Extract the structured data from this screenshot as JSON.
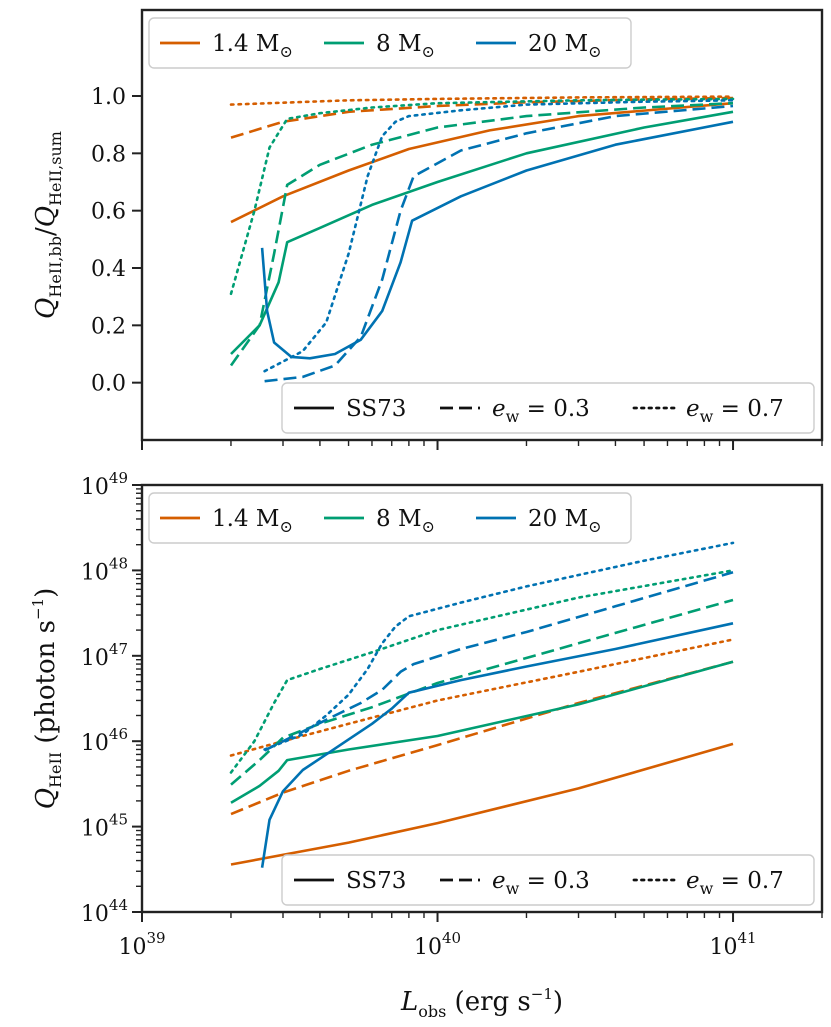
{
  "colors": {
    "m14": "#d55e00",
    "m8": "#009e73",
    "m20": "#0072b2",
    "axis": "#222222"
  },
  "mass_legend": [
    {
      "label": "1.4",
      "unit": "M",
      "sub": "⊙",
      "color": "#d55e00"
    },
    {
      "label": "8",
      "unit": "M",
      "sub": "⊙",
      "color": "#009e73"
    },
    {
      "label": "20",
      "unit": "M",
      "sub": "⊙",
      "color": "#0072b2"
    }
  ],
  "style_legend": [
    {
      "label": "SS73",
      "style": "solid"
    },
    {
      "label": "e",
      "sub": "w",
      "rest": " = 0.3",
      "style": "dashed"
    },
    {
      "label": "e",
      "sub": "w",
      "rest": " = 0.7",
      "style": "dotted"
    }
  ],
  "x_axis": {
    "label": "L",
    "label_sub": "obs",
    "label_unit": " (erg s",
    "label_sup": "−1",
    "label_close": ")",
    "scale": "log",
    "range": [
      1e+39,
      2e+40
    ],
    "ticks": [
      {
        "base": "10",
        "exp": "39",
        "value": 1e+39
      },
      {
        "base": "10",
        "exp": "40",
        "value": 1e+40
      },
      {
        "base": "10",
        "exp": "41",
        "value": 1e+41
      }
    ]
  },
  "chart_data": [
    {
      "type": "line",
      "panel": "top",
      "ylabel": {
        "q": "Q",
        "num_sub": "HeII,bb",
        "slash": "/",
        "q2": "Q",
        "den_sub": "HeII,sum"
      },
      "yscale": "linear",
      "ylim": [
        -0.2,
        1.3
      ],
      "yticks": [
        "0.0",
        "0.2",
        "0.4",
        "0.6",
        "0.8",
        "1.0"
      ],
      "xlim": [
        1e+39,
        2e+41
      ],
      "series": [
        {
          "mass": "1.4",
          "style": "solid",
          "x": [
            2e+39,
            3e+39,
            5e+39,
            8e+39,
            1.5e+40,
            3e+40,
            1e+41
          ],
          "y": [
            0.56,
            0.65,
            0.74,
            0.815,
            0.88,
            0.93,
            0.975
          ]
        },
        {
          "mass": "1.4",
          "style": "dashed",
          "x": [
            2e+39,
            3e+39,
            5e+39,
            1e+40,
            2e+40,
            5e+40,
            1e+41
          ],
          "y": [
            0.855,
            0.91,
            0.945,
            0.965,
            0.978,
            0.988,
            0.993
          ]
        },
        {
          "mass": "1.4",
          "style": "dotted",
          "x": [
            2e+39,
            5e+39,
            1e+40,
            3e+40,
            1e+41
          ],
          "y": [
            0.97,
            0.985,
            0.99,
            0.995,
            0.998
          ]
        },
        {
          "mass": "8",
          "style": "solid",
          "x": [
            2e+39,
            2.5e+39,
            2.9e+39,
            3.1e+39,
            4e+39,
            6e+39,
            1e+40,
            2e+40,
            5e+40,
            1e+41
          ],
          "y": [
            0.1,
            0.2,
            0.35,
            0.49,
            0.54,
            0.62,
            0.7,
            0.8,
            0.89,
            0.945
          ]
        },
        {
          "mass": "8",
          "style": "dashed",
          "x": [
            2e+39,
            2.5e+39,
            2.8e+39,
            3.1e+39,
            4e+39,
            6e+39,
            1e+40,
            2e+40,
            5e+40,
            1e+41
          ],
          "y": [
            0.06,
            0.2,
            0.45,
            0.69,
            0.76,
            0.83,
            0.89,
            0.93,
            0.96,
            0.975
          ]
        },
        {
          "mass": "8",
          "style": "dotted",
          "x": [
            2e+39,
            2.4e+39,
            2.7e+39,
            3.1e+39,
            4e+39,
            6e+39,
            1e+40,
            3e+40,
            1e+41
          ],
          "y": [
            0.31,
            0.6,
            0.82,
            0.92,
            0.94,
            0.96,
            0.975,
            0.985,
            0.99
          ]
        },
        {
          "mass": "20",
          "style": "solid",
          "x": [
            2.55e+39,
            2.65e+39,
            2.8e+39,
            3.2e+39,
            3.7e+39,
            4.5e+39,
            5.5e+39,
            6.5e+39,
            7.5e+39,
            8.2e+39,
            1.2e+40,
            2e+40,
            4e+40,
            1e+41
          ],
          "y": [
            0.47,
            0.25,
            0.14,
            0.09,
            0.085,
            0.1,
            0.15,
            0.25,
            0.42,
            0.565,
            0.65,
            0.74,
            0.83,
            0.91
          ]
        },
        {
          "mass": "20",
          "style": "dashed",
          "x": [
            2.6e+39,
            3.5e+39,
            4.5e+39,
            5.5e+39,
            6.5e+39,
            7.5e+39,
            8.3e+39,
            1.2e+40,
            2e+40,
            4e+40,
            1e+41
          ],
          "y": [
            0.005,
            0.02,
            0.06,
            0.16,
            0.36,
            0.6,
            0.72,
            0.81,
            0.87,
            0.93,
            0.965
          ]
        },
        {
          "mass": "20",
          "style": "dotted",
          "x": [
            2.6e+39,
            3.5e+39,
            4.2e+39,
            5e+39,
            5.8e+39,
            6.5e+39,
            7.2e+39,
            8e+39,
            1.2e+40,
            2e+40,
            5e+40,
            1e+41
          ],
          "y": [
            0.04,
            0.11,
            0.21,
            0.45,
            0.72,
            0.86,
            0.91,
            0.93,
            0.95,
            0.97,
            0.98,
            0.985
          ]
        }
      ]
    },
    {
      "type": "line",
      "panel": "bottom",
      "ylabel": {
        "q": "Q",
        "sub": "HeII",
        "unit": " (photon s",
        "sup": "−1",
        "close": ")"
      },
      "yscale": "log",
      "ylim": [
        1e+44,
        1e+49
      ],
      "yticks": [
        {
          "base": "10",
          "exp": "44"
        },
        {
          "base": "10",
          "exp": "45"
        },
        {
          "base": "10",
          "exp": "46"
        },
        {
          "base": "10",
          "exp": "47"
        },
        {
          "base": "10",
          "exp": "48"
        },
        {
          "base": "10",
          "exp": "49"
        }
      ],
      "xlim": [
        1e+39,
        2e+41
      ],
      "series": [
        {
          "mass": "1.4",
          "style": "solid",
          "x": [
            2e+39,
            5e+39,
            1e+40,
            3e+40,
            1e+41
          ],
          "y": [
            3.6e+44,
            6.5e+44,
            1.1e+45,
            2.8e+45,
            9.3e+45
          ]
        },
        {
          "mass": "1.4",
          "style": "dashed",
          "x": [
            2e+39,
            3e+39,
            5e+39,
            1e+40,
            3e+40,
            1e+41
          ],
          "y": [
            1.4e+45,
            2.5e+45,
            4.5e+45,
            9e+45,
            2.8e+46,
            8.5e+46
          ]
        },
        {
          "mass": "1.4",
          "style": "dotted",
          "x": [
            2e+39,
            3e+39,
            5e+39,
            1e+40,
            3e+40,
            1e+41
          ],
          "y": [
            6.8e+45,
            1e+46,
            1.6e+46,
            3e+46,
            6.5e+46,
            1.55e+47
          ]
        },
        {
          "mass": "8",
          "style": "solid",
          "x": [
            2e+39,
            2.5e+39,
            2.9e+39,
            3.1e+39,
            5e+39,
            1e+40,
            3e+40,
            1e+41
          ],
          "y": [
            1.9e+45,
            3e+45,
            4.5e+45,
            6e+45,
            8e+45,
            1.15e+46,
            2.7e+46,
            8.5e+46
          ]
        },
        {
          "mass": "8",
          "style": "dashed",
          "x": [
            2e+39,
            2.5e+39,
            3e+39,
            4e+39,
            6e+39,
            1e+40,
            3e+40,
            1e+41
          ],
          "y": [
            3.1e+45,
            6e+45,
            1.1e+46,
            1.6e+46,
            2.5e+46,
            4.8e+46,
            1.4e+47,
            4.5e+47
          ]
        },
        {
          "mass": "8",
          "style": "dotted",
          "x": [
            2e+39,
            2.4e+39,
            2.8e+39,
            3.1e+39,
            4e+39,
            6e+39,
            1e+40,
            3e+40,
            1e+41
          ],
          "y": [
            4.3e+45,
            1e+46,
            2.8e+46,
            5.2e+46,
            7e+46,
            1.1e+47,
            2e+47,
            4.8e+47,
            1e+48
          ]
        },
        {
          "mass": "20",
          "style": "solid",
          "x": [
            2.55e+39,
            2.7e+39,
            3e+39,
            3.5e+39,
            4.2e+39,
            5e+39,
            6e+39,
            7e+39,
            8e+39,
            1.2e+40,
            2e+40,
            4e+40,
            1e+41
          ],
          "y": [
            3.3e+44,
            1.2e+45,
            2.6e+45,
            4.6e+45,
            7e+45,
            1.05e+46,
            1.6e+46,
            2.4e+46,
            3.7e+46,
            5.2e+46,
            7.5e+46,
            1.2e+47,
            2.4e+47
          ]
        },
        {
          "mass": "20",
          "style": "dashed",
          "x": [
            2.6e+39,
            3.5e+39,
            4.5e+39,
            5.5e+39,
            6.5e+39,
            7.5e+39,
            8.3e+39,
            1.2e+40,
            2e+40,
            4e+40,
            1e+41
          ],
          "y": [
            7.8e+45,
            1.3e+46,
            2e+46,
            2.8e+46,
            4e+46,
            6.5e+46,
            8e+46,
            1.2e+47,
            1.9e+47,
            3.8e+47,
            9.5e+47
          ]
        },
        {
          "mass": "20",
          "style": "dotted",
          "x": [
            2.6e+39,
            3.5e+39,
            4.2e+39,
            5e+39,
            5.8e+39,
            6.5e+39,
            7.2e+39,
            8e+39,
            1.2e+40,
            2e+40,
            5e+40,
            1e+41
          ],
          "y": [
            8e+45,
            1.2e+46,
            2e+46,
            3.5e+46,
            7e+46,
            1.4e+47,
            2.2e+47,
            2.9e+47,
            4.2e+47,
            6.5e+47,
            1.3e+48,
            2.1e+48
          ]
        }
      ]
    }
  ]
}
